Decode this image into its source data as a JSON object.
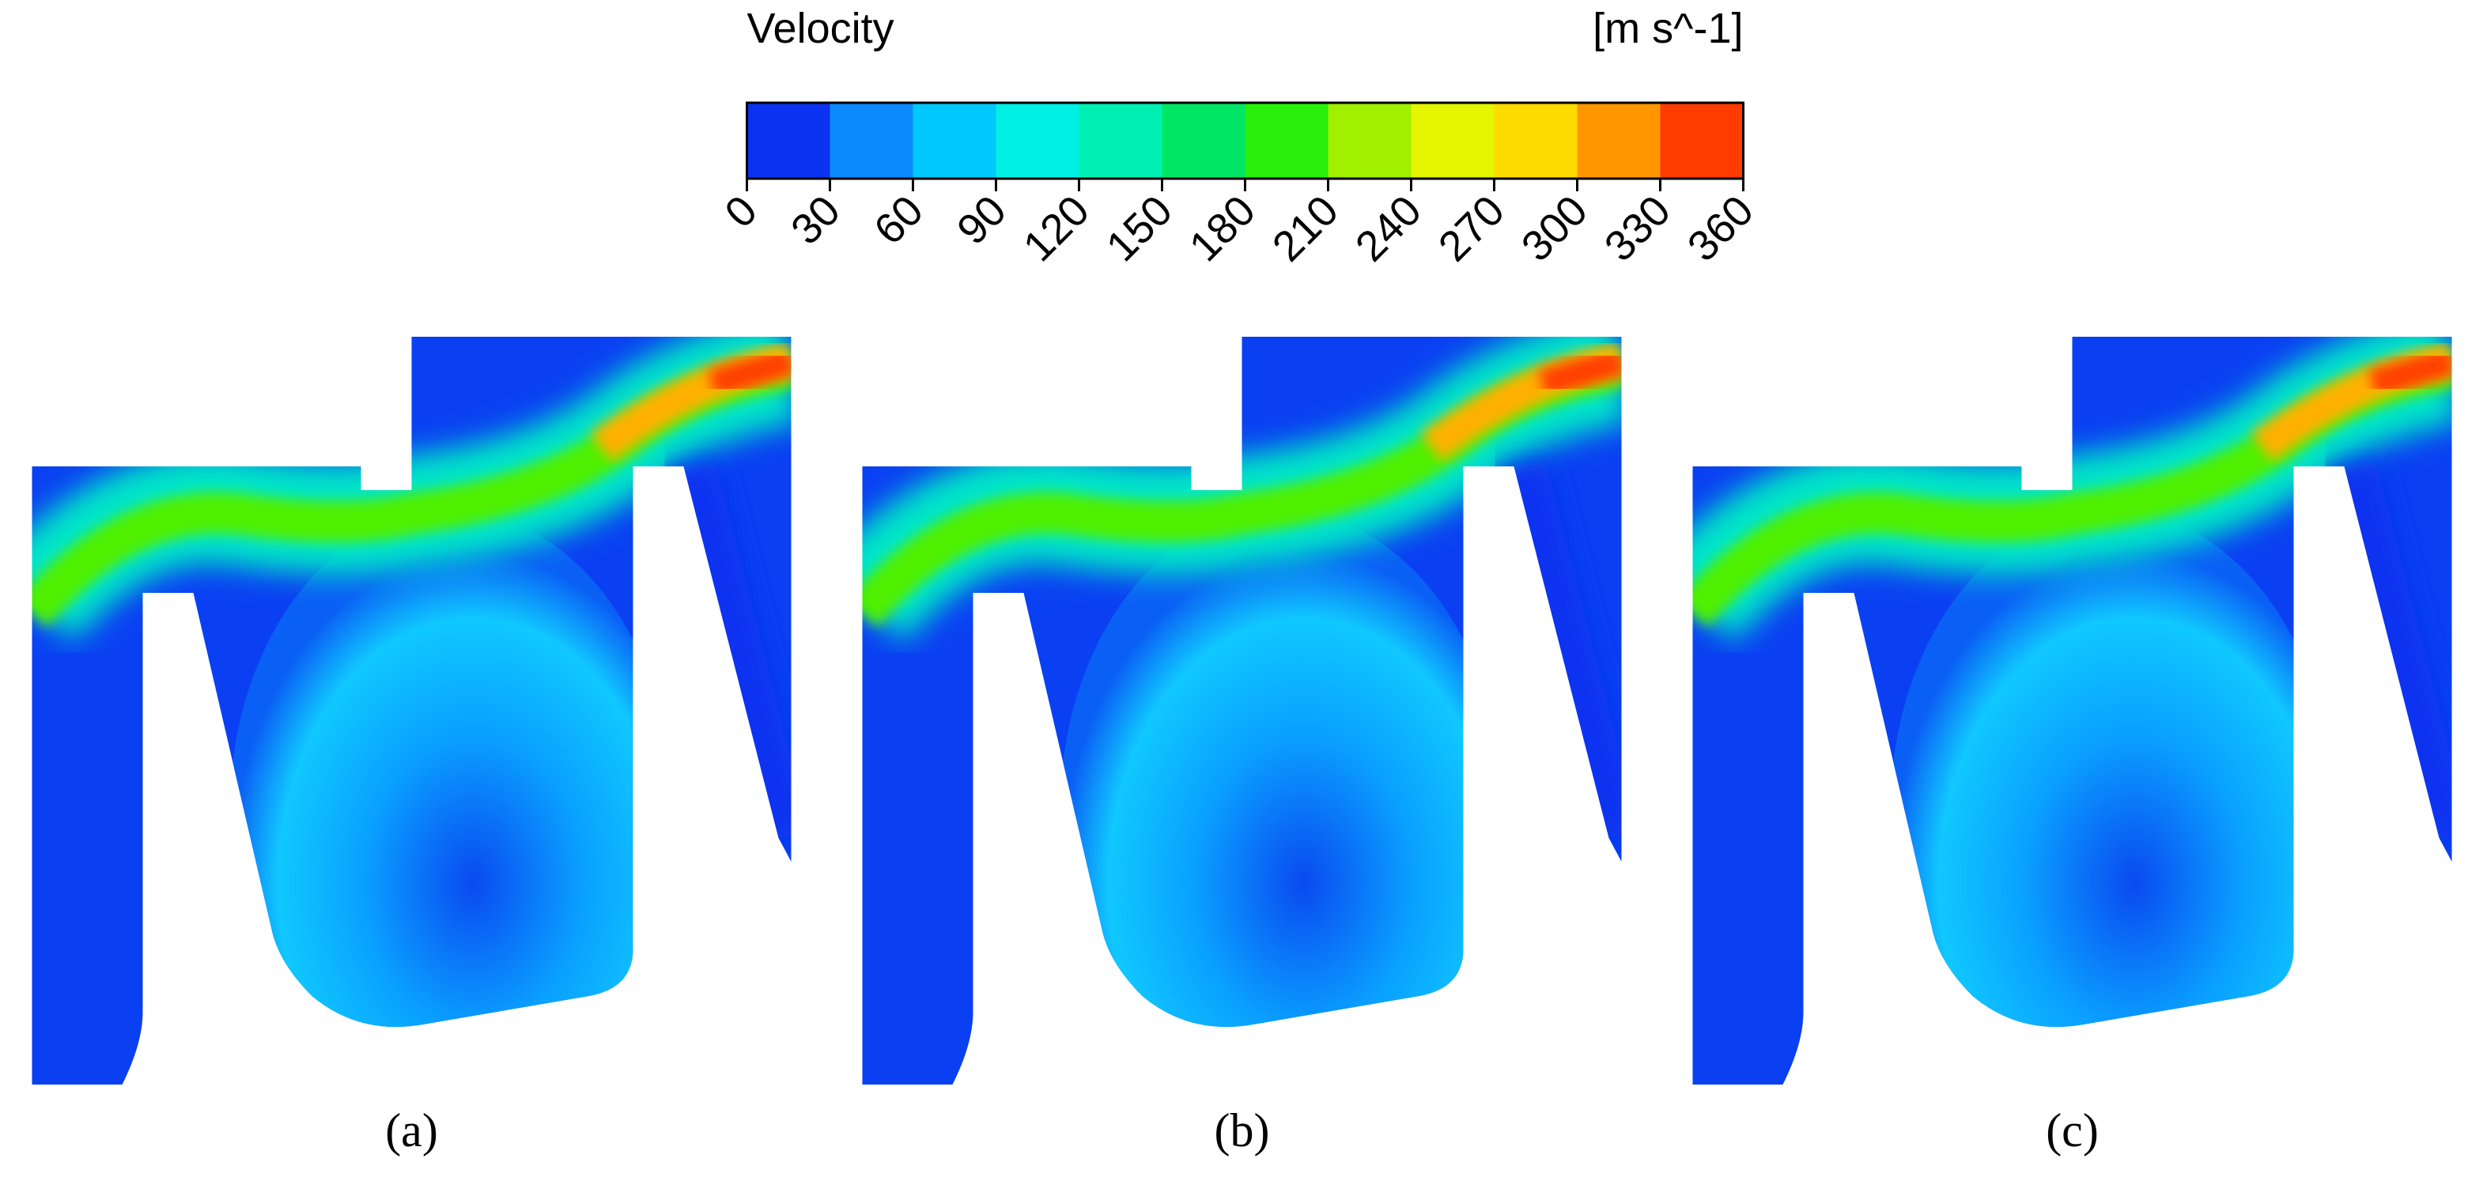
{
  "colorbar": {
    "title": "Velocity",
    "unit": "[m s^-1]",
    "ticks": [
      0,
      30,
      60,
      90,
      120,
      150,
      180,
      210,
      240,
      270,
      300,
      330,
      360
    ],
    "colors": [
      "#0a32f0",
      "#0a8cff",
      "#00c8ff",
      "#00f0e6",
      "#00f0b4",
      "#00e664",
      "#28f00a",
      "#a0f000",
      "#e6f500",
      "#ffdc00",
      "#ff9600",
      "#ff3c00"
    ]
  },
  "panels": [
    {
      "label": "(a)"
    },
    {
      "label": "(b)"
    },
    {
      "label": "(c)"
    }
  ]
}
